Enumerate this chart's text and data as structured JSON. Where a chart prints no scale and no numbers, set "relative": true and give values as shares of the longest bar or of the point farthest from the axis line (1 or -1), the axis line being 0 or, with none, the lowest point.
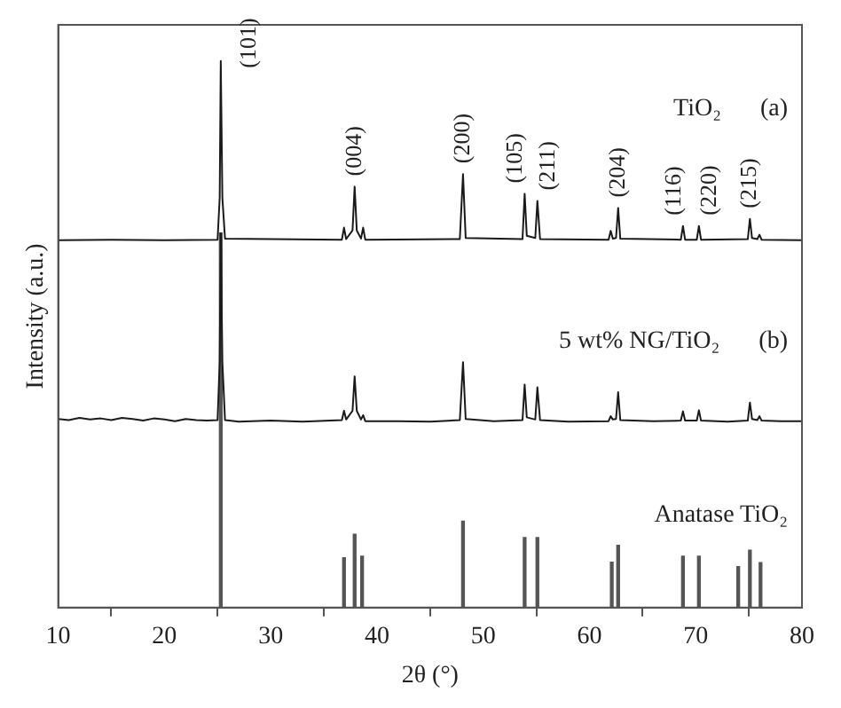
{
  "chart_data": {
    "type": "line",
    "xlabel": "2θ (°)",
    "ylabel": "Intensity (a.u.)",
    "relative": true,
    "xlim": [
      10,
      80
    ],
    "xticks": [
      10,
      20,
      30,
      40,
      50,
      60,
      70,
      80
    ],
    "grid": false,
    "legend": false,
    "marker": "none",
    "series": [
      {
        "color": "#1a1a1a",
        "x": [
          10,
          15,
          20,
          25.0,
          25.2,
          25.3,
          25.45,
          25.7,
          36.7,
          36.9,
          37.1,
          37.7,
          37.9,
          38.1,
          38.5,
          38.7,
          38.9,
          47.8,
          48.1,
          48.35,
          53.7,
          53.9,
          54.1,
          54.9,
          55.1,
          55.35,
          61.8,
          62.0,
          62.2,
          62.5,
          62.7,
          62.9,
          68.6,
          68.8,
          69.0,
          70.1,
          70.3,
          70.5,
          74.9,
          75.1,
          75.3,
          75.8,
          76.0,
          76.2,
          80
        ],
        "values": [
          0.672,
          0.673,
          0.672,
          0.673,
          0.75,
          1.0,
          0.75,
          0.675,
          0.673,
          0.695,
          0.674,
          0.69,
          0.77,
          0.69,
          0.675,
          0.695,
          0.673,
          0.674,
          0.793,
          0.676,
          0.674,
          0.757,
          0.68,
          0.676,
          0.744,
          0.674,
          0.673,
          0.689,
          0.675,
          0.676,
          0.731,
          0.675,
          0.673,
          0.698,
          0.673,
          0.673,
          0.698,
          0.673,
          0.674,
          0.711,
          0.676,
          0.674,
          0.682,
          0.673,
          0.672
        ]
      },
      {
        "color": "#1a1a1a",
        "x": [
          10,
          11,
          12,
          13,
          14,
          15,
          16,
          17,
          18,
          19,
          20,
          21,
          22,
          23,
          24,
          25.0,
          25.2,
          25.3,
          25.45,
          25.7,
          27,
          30,
          33,
          36.7,
          36.9,
          37.1,
          37.7,
          37.9,
          38.1,
          38.5,
          38.7,
          38.9,
          42,
          45,
          47.8,
          48.1,
          48.35,
          51,
          53.7,
          53.9,
          54.1,
          54.9,
          55.1,
          55.35,
          58,
          61.8,
          62.0,
          62.2,
          62.5,
          62.7,
          62.9,
          66,
          68.6,
          68.8,
          69.0,
          70.1,
          70.3,
          70.5,
          73,
          74.9,
          75.1,
          75.3,
          75.8,
          76.0,
          76.2,
          78,
          80
        ],
        "values": [
          0.345,
          0.343,
          0.347,
          0.344,
          0.346,
          0.343,
          0.347,
          0.345,
          0.342,
          0.346,
          0.344,
          0.341,
          0.345,
          0.343,
          0.342,
          0.343,
          0.45,
          0.685,
          0.45,
          0.343,
          0.34,
          0.342,
          0.34,
          0.343,
          0.36,
          0.344,
          0.36,
          0.423,
          0.36,
          0.344,
          0.352,
          0.341,
          0.341,
          0.34,
          0.343,
          0.449,
          0.345,
          0.341,
          0.343,
          0.408,
          0.348,
          0.344,
          0.403,
          0.343,
          0.34,
          0.341,
          0.35,
          0.344,
          0.345,
          0.394,
          0.343,
          0.341,
          0.342,
          0.359,
          0.342,
          0.342,
          0.361,
          0.342,
          0.34,
          0.342,
          0.375,
          0.345,
          0.343,
          0.35,
          0.342,
          0.341,
          0.341
        ]
      },
      {
        "type": "bar",
        "color": "#555555",
        "x": [
          25.3,
          36.9,
          37.9,
          38.6,
          48.1,
          53.9,
          55.1,
          62.1,
          62.7,
          68.8,
          70.3,
          74.0,
          75.1,
          76.1
        ],
        "values": [
          0.685,
          0.091,
          0.134,
          0.094,
          0.158,
          0.128,
          0.128,
          0.083,
          0.114,
          0.094,
          0.094,
          0.075,
          0.105,
          0.082
        ]
      }
    ],
    "annotations": [
      {
        "text": "(101)",
        "x": 25.3,
        "y": 1.0
      },
      {
        "text": "(004)",
        "x": 37.9,
        "y": 0.77
      },
      {
        "text": "(200)",
        "x": 48.1,
        "y": 0.793
      },
      {
        "text": "(105)",
        "x": 53.9,
        "y": 0.757
      },
      {
        "text": "(211)",
        "x": 55.1,
        "y": 0.744
      },
      {
        "text": "(204)",
        "x": 62.7,
        "y": 0.731
      },
      {
        "text": "(116)",
        "x": 68.8,
        "y": 0.698
      },
      {
        "text": "(220)",
        "x": 70.3,
        "y": 0.698
      },
      {
        "text": "(215)",
        "x": 75.1,
        "y": 0.711
      },
      "TiO₂",
      "(a)",
      "5 wt% NG/TiO₂",
      "(b)",
      "Anatase TiO₂"
    ]
  }
}
